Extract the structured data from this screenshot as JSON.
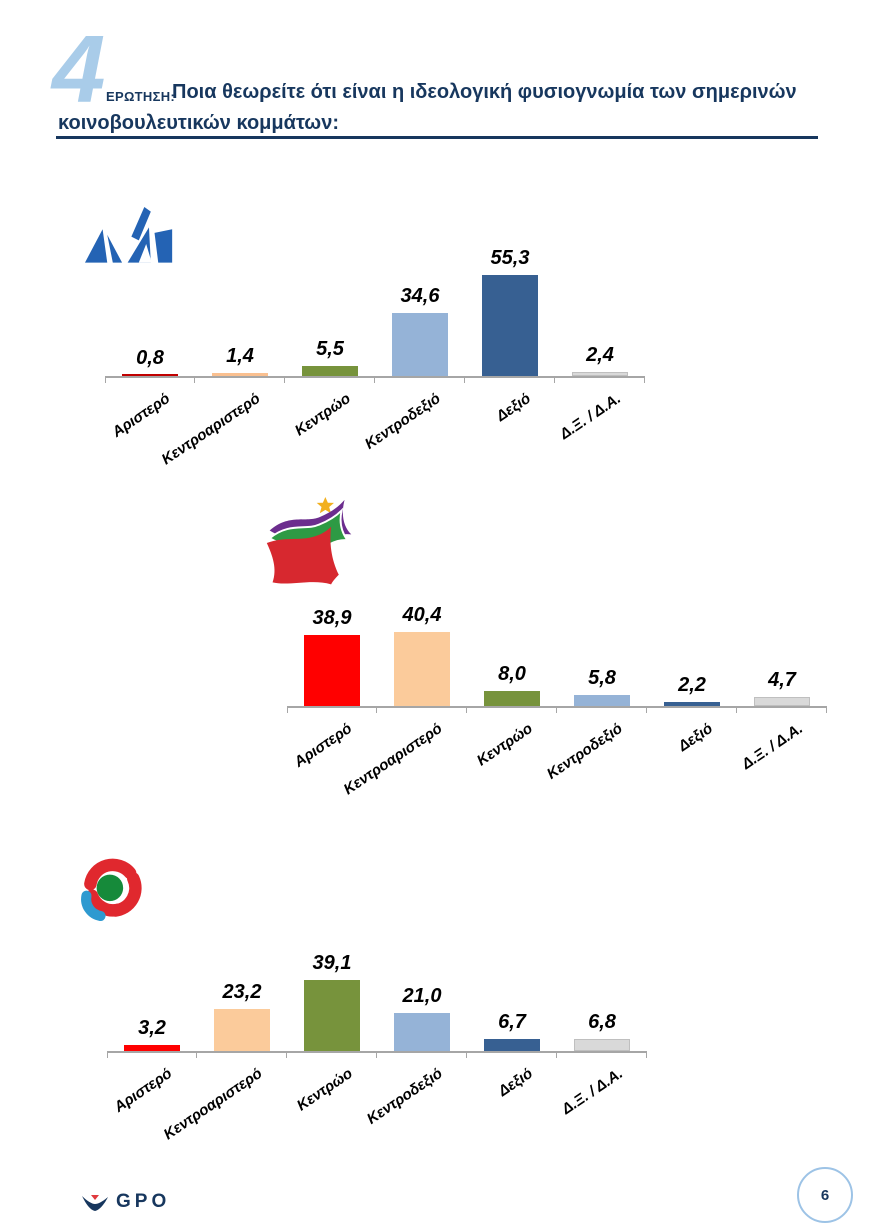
{
  "header": {
    "question_number": "4",
    "question_label": "ΕΡΩΤΗΣΗ:",
    "question_lines": [
      "Ποια θεωρείτε ότι είναι η ιδεολογική φυσιογνωμία των σημερινών",
      "κοινοβουλευτικών κομμάτων:"
    ],
    "accent_color": "#A9CCE9",
    "text_color": "#17375E"
  },
  "footer": {
    "brand": "GPO",
    "page_number": "6"
  },
  "chart_data": [
    {
      "type": "bar",
      "party": "ΝΔ (Νέα Δημοκρατία)",
      "logo": "nea-dimokratia-logo",
      "categories": [
        "Αριστερό",
        "Κεντροαριστερό",
        "Κεντρώο",
        "Κεντροδεξιό",
        "Δεξιό",
        "Δ.Ξ. / Δ.Α."
      ],
      "values": [
        0.8,
        1.4,
        5.5,
        34.6,
        55.3,
        2.4
      ],
      "value_labels": [
        "0,8",
        "1,4",
        "5,5",
        "34,6",
        "55,3",
        "2,4"
      ],
      "colors": [
        "#C00000",
        "#FAC090",
        "#77933C",
        "#95B3D7",
        "#376092",
        "#D9D9D9"
      ],
      "ylim": [
        0,
        60
      ],
      "grid": false,
      "legend": false
    },
    {
      "type": "bar",
      "party": "ΣΥΡΙΖΑ",
      "logo": "syriza-logo",
      "categories": [
        "Αριστερό",
        "Κεντροαριστερό",
        "Κεντρώο",
        "Κεντροδεξιό",
        "Δεξιό",
        "Δ.Ξ. / Δ.Α."
      ],
      "values": [
        38.9,
        40.4,
        8.0,
        5.8,
        2.2,
        4.7
      ],
      "value_labels": [
        "38,9",
        "40,4",
        "8,0",
        "5,8",
        "2,2",
        "4,7"
      ],
      "colors": [
        "#FF0000",
        "#FBCB9B",
        "#77933C",
        "#95B3D7",
        "#376092",
        "#D9D9D9"
      ],
      "ylim": [
        0,
        45
      ],
      "grid": false,
      "legend": false
    },
    {
      "type": "bar",
      "party": "ΠΑΣΟΚ / Κίνημα Αλλαγής",
      "logo": "pasok-kinal-logo",
      "categories": [
        "Αριστερό",
        "Κεντροαριστερό",
        "Κεντρώο",
        "Κεντροδεξιό",
        "Δεξιό",
        "Δ.Ξ. / Δ.Α."
      ],
      "values": [
        3.2,
        23.2,
        39.1,
        21.0,
        6.7,
        6.8
      ],
      "value_labels": [
        "3,2",
        "23,2",
        "39,1",
        "21,0",
        "6,7",
        "6,8"
      ],
      "colors": [
        "#FF0000",
        "#FBCB9B",
        "#77933C",
        "#95B3D7",
        "#376092",
        "#D9D9D9"
      ],
      "ylim": [
        0,
        45
      ],
      "grid": false,
      "legend": false
    }
  ]
}
